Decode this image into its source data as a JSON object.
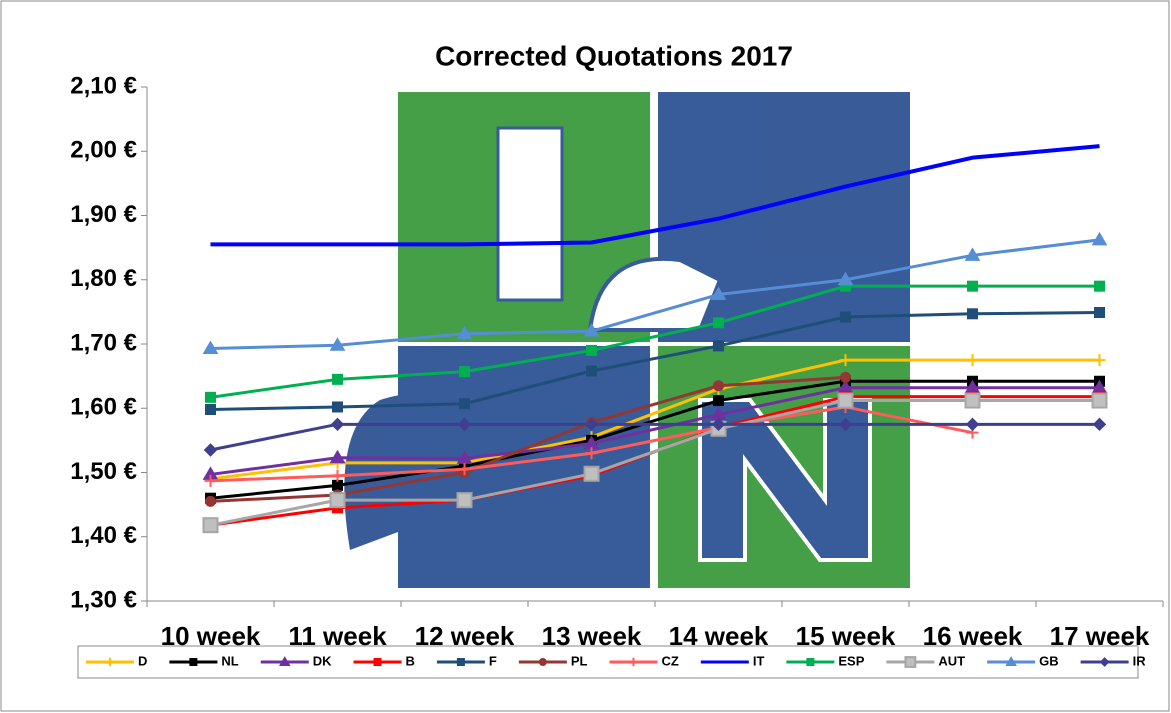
{
  "chart_data": {
    "type": "line",
    "title": "Corrected Quotations 2017",
    "categories": [
      "10 week",
      "11 week",
      "12 week",
      "13 week",
      "14 week",
      "15 week",
      "16 week",
      "17 week"
    ],
    "ylim": [
      1.3,
      2.1
    ],
    "yticks": [
      {
        "value": 1.3,
        "label": "1,30 €"
      },
      {
        "value": 1.4,
        "label": "1,40 €"
      },
      {
        "value": 1.5,
        "label": "1,50 €"
      },
      {
        "value": 1.6,
        "label": "1,60 €"
      },
      {
        "value": 1.7,
        "label": "1,70 €"
      },
      {
        "value": 1.8,
        "label": "1,80 €"
      },
      {
        "value": 1.9,
        "label": "1,90 €"
      },
      {
        "value": 2.0,
        "label": "2,00 €"
      },
      {
        "value": 2.1,
        "label": "2,10 €"
      }
    ],
    "grid": false,
    "legend": "bottom",
    "series": [
      {
        "name": "D",
        "color": "#ffc000",
        "marker": "plus",
        "values": [
          1.49,
          1.515,
          1.515,
          1.555,
          1.63,
          1.675,
          1.675,
          1.675
        ]
      },
      {
        "name": "NL",
        "color": "#000000",
        "marker": "square",
        "values": [
          1.46,
          1.48,
          1.51,
          1.55,
          1.612,
          1.642,
          1.642,
          1.642
        ]
      },
      {
        "name": "DK",
        "color": "#7030a0",
        "marker": "triangle",
        "values": [
          1.497,
          1.523,
          1.522,
          1.545,
          1.59,
          1.632,
          1.632,
          1.632
        ]
      },
      {
        "name": "B",
        "color": "#ff0000",
        "marker": "square",
        "values": [
          1.418,
          1.445,
          1.457,
          1.495,
          1.57,
          1.618,
          1.618,
          1.618
        ]
      },
      {
        "name": "F",
        "color": "#1f4e79",
        "marker": "square",
        "values": [
          1.598,
          1.602,
          1.607,
          1.658,
          1.697,
          1.742,
          1.747,
          1.749
        ]
      },
      {
        "name": "PL",
        "color": "#943634",
        "marker": "circle",
        "values": [
          1.455,
          1.465,
          1.5,
          1.578,
          1.635,
          1.648,
          null,
          null
        ]
      },
      {
        "name": "CZ",
        "color": "#ff5b5b",
        "marker": "plus",
        "values": [
          1.487,
          1.495,
          1.505,
          1.53,
          1.57,
          1.602,
          1.562,
          null
        ]
      },
      {
        "name": "IT",
        "color": "#0000ff",
        "marker": "none",
        "values": [
          1.855,
          1.855,
          1.855,
          1.858,
          1.895,
          1.945,
          1.99,
          2.008
        ]
      },
      {
        "name": "ESP",
        "color": "#00b050",
        "marker": "square",
        "values": [
          1.617,
          1.645,
          1.657,
          1.69,
          1.733,
          1.79,
          1.79,
          1.79
        ]
      },
      {
        "name": "AUT",
        "color": "#a6a6a6",
        "marker": "bigsquare",
        "values": [
          1.418,
          1.457,
          1.457,
          1.498,
          1.568,
          1.612,
          1.612,
          1.612
        ]
      },
      {
        "name": "GB",
        "color": "#558ed5",
        "marker": "triangle",
        "values": [
          1.693,
          1.698,
          1.716,
          1.72,
          1.777,
          1.8,
          1.838,
          1.862
        ]
      },
      {
        "name": "IR",
        "color": "#3f3f8f",
        "marker": "diamond",
        "values": [
          1.535,
          1.575,
          1.575,
          1.575,
          1.575,
          1.575,
          1.575,
          1.575
        ]
      }
    ]
  }
}
